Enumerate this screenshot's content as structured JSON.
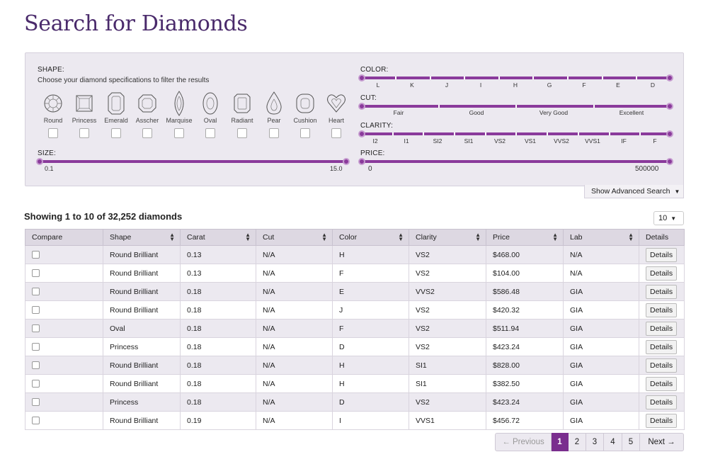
{
  "page": {
    "title": "Search for Diamonds"
  },
  "filters": {
    "shape": {
      "label": "SHAPE:",
      "hint": "Choose your diamond specifications to filter the results",
      "options": [
        "Round",
        "Princess",
        "Emerald",
        "Asscher",
        "Marquise",
        "Oval",
        "Radiant",
        "Pear",
        "Cushion",
        "Heart"
      ]
    },
    "size": {
      "label": "SIZE:",
      "min": "0.1",
      "max": "15.0"
    },
    "color": {
      "label": "COLOR:",
      "grades": [
        "L",
        "K",
        "J",
        "I",
        "H",
        "G",
        "F",
        "E",
        "D"
      ]
    },
    "cut": {
      "label": "CUT:",
      "grades": [
        "Fair",
        "Good",
        "Very Good",
        "Excellent"
      ]
    },
    "clarity": {
      "label": "CLARITY:",
      "grades": [
        "I2",
        "I1",
        "SI2",
        "SI1",
        "VS2",
        "VS1",
        "VVS2",
        "VVS1",
        "IF",
        "F"
      ]
    },
    "price": {
      "label": "PRICE:",
      "min": "0",
      "max": "500000"
    },
    "advanced_label": "Show Advanced Search"
  },
  "results": {
    "summary": "Showing 1 to 10 of 32,252 diamonds",
    "per_page": "10",
    "columns": [
      "Compare",
      "Shape",
      "Carat",
      "Cut",
      "Color",
      "Clarity",
      "Price",
      "Lab",
      "Details"
    ],
    "details_label": "Details",
    "rows": [
      {
        "shape": "Round Brilliant",
        "carat": "0.13",
        "cut": "N/A",
        "color": "H",
        "clarity": "VS2",
        "price": "$468.00",
        "lab": "N/A"
      },
      {
        "shape": "Round Brilliant",
        "carat": "0.13",
        "cut": "N/A",
        "color": "F",
        "clarity": "VS2",
        "price": "$104.00",
        "lab": "N/A"
      },
      {
        "shape": "Round Brilliant",
        "carat": "0.18",
        "cut": "N/A",
        "color": "E",
        "clarity": "VVS2",
        "price": "$586.48",
        "lab": "GIA"
      },
      {
        "shape": "Round Brilliant",
        "carat": "0.18",
        "cut": "N/A",
        "color": "J",
        "clarity": "VS2",
        "price": "$420.32",
        "lab": "GIA"
      },
      {
        "shape": "Oval",
        "carat": "0.18",
        "cut": "N/A",
        "color": "F",
        "clarity": "VS2",
        "price": "$511.94",
        "lab": "GIA"
      },
      {
        "shape": "Princess",
        "carat": "0.18",
        "cut": "N/A",
        "color": "D",
        "clarity": "VS2",
        "price": "$423.24",
        "lab": "GIA"
      },
      {
        "shape": "Round Brilliant",
        "carat": "0.18",
        "cut": "N/A",
        "color": "H",
        "clarity": "SI1",
        "price": "$828.00",
        "lab": "GIA"
      },
      {
        "shape": "Round Brilliant",
        "carat": "0.18",
        "cut": "N/A",
        "color": "H",
        "clarity": "SI1",
        "price": "$382.50",
        "lab": "GIA"
      },
      {
        "shape": "Princess",
        "carat": "0.18",
        "cut": "N/A",
        "color": "D",
        "clarity": "VS2",
        "price": "$423.24",
        "lab": "GIA"
      },
      {
        "shape": "Round Brilliant",
        "carat": "0.19",
        "cut": "N/A",
        "color": "I",
        "clarity": "VVS1",
        "price": "$456.72",
        "lab": "GIA"
      }
    ]
  },
  "pagination": {
    "previous": "← Previous",
    "pages": [
      "1",
      "2",
      "3",
      "4",
      "5"
    ],
    "active_page": "1",
    "next": "Next →"
  },
  "colors": {
    "brand": "#4a2a6b",
    "accent": "#8a3a9b",
    "active_page": "#7a2e8e"
  },
  "icons": [
    "round-shape-icon",
    "princess-shape-icon",
    "emerald-shape-icon",
    "asscher-shape-icon",
    "marquise-shape-icon",
    "oval-shape-icon",
    "radiant-shape-icon",
    "pear-shape-icon",
    "cushion-shape-icon",
    "heart-shape-icon",
    "caret-down-icon",
    "sort-icon"
  ]
}
